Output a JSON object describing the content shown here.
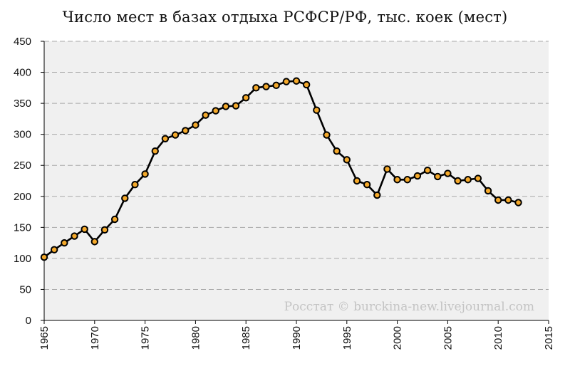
{
  "chart_data": {
    "type": "line",
    "title": "Число мест в базах отдыха РСФСР/РФ, тыс. коек (мест)",
    "xlabel": "",
    "ylabel": "",
    "xlim": [
      1965,
      2015
    ],
    "ylim": [
      0,
      450
    ],
    "x_ticks": [
      1965,
      1970,
      1975,
      1980,
      1985,
      1990,
      1995,
      2000,
      2005,
      2010,
      2015
    ],
    "y_ticks": [
      0,
      50,
      100,
      150,
      200,
      250,
      300,
      350,
      400,
      450
    ],
    "grid": true,
    "legend": "none",
    "watermark": "Росстат © burckina-new.livejournal.com",
    "colors": {
      "plot_background": "#f0f0f0",
      "grid": "#a8a8a8",
      "line": "#000000",
      "marker_fill": "#f4a92b",
      "marker_edge": "#000000"
    },
    "series": [
      {
        "x": [
          1965,
          1966,
          1967,
          1968,
          1969,
          1970,
          1971,
          1972,
          1973,
          1974,
          1975,
          1976,
          1977,
          1978,
          1979,
          1980,
          1981,
          1982,
          1983,
          1984,
          1985,
          1986,
          1987,
          1988,
          1989,
          1990,
          1991,
          1992,
          1993,
          1994,
          1995,
          1996,
          1997,
          1998,
          1999,
          2000,
          2001,
          2002,
          2003,
          2004,
          2005,
          2006,
          2007,
          2008,
          2009,
          2010,
          2011,
          2012
        ],
        "values": [
          102,
          114,
          125,
          136,
          147,
          127,
          146,
          163,
          197,
          219,
          236,
          273,
          293,
          299,
          306,
          315,
          331,
          338,
          345,
          346,
          359,
          375,
          377,
          379,
          385,
          386,
          380,
          339,
          299,
          273,
          259,
          225,
          219,
          202,
          244,
          227,
          227,
          233,
          242,
          232,
          237,
          225,
          227,
          229,
          209,
          194,
          194,
          190
        ]
      }
    ]
  }
}
